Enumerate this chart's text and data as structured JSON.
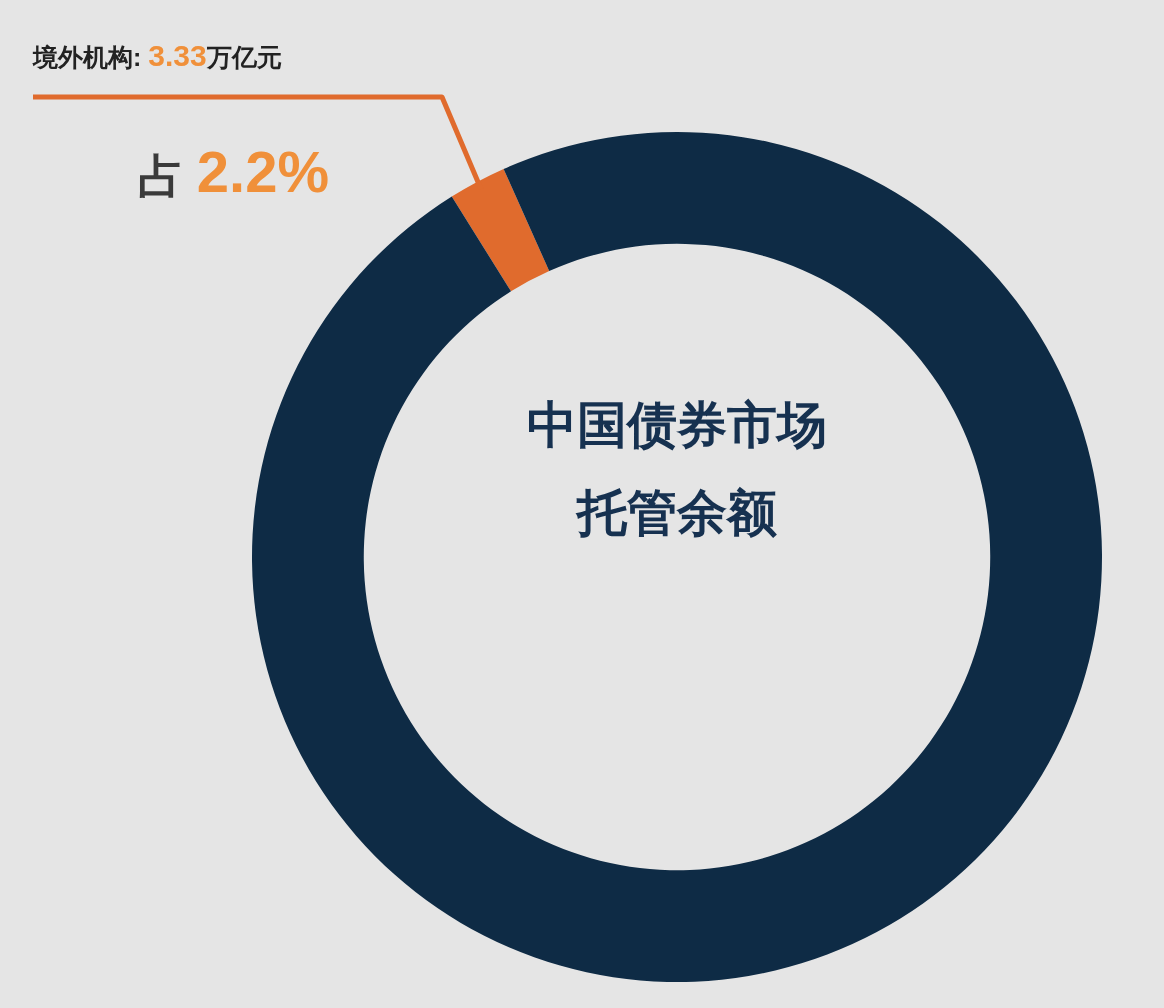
{
  "chart_data": {
    "type": "donut",
    "title": "中国债券市场托管余额",
    "categories": [
      "境外机构",
      null
    ],
    "values": [
      2.2,
      97.8
    ],
    "colors": [
      "#e06b2d",
      "#0e2b45"
    ],
    "value_labels": [
      "占 2.2%",
      null
    ],
    "annotations": [
      ": 3.33万亿元"
    ]
  }
}
